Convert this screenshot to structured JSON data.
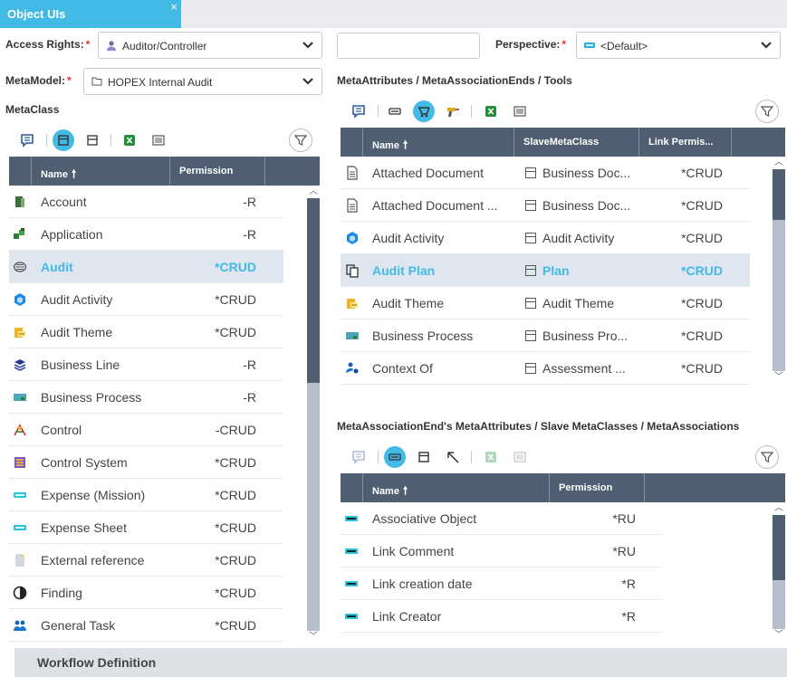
{
  "tab": {
    "title": "Object UIs",
    "close": "×"
  },
  "access_rights": {
    "label": "Access Rights:",
    "required": "*",
    "value": "Auditor/Controller",
    "icon": "user-icon"
  },
  "metamodel": {
    "label": "MetaModel:",
    "required": "*",
    "value": "HOPEX Internal Audit",
    "icon": "folder-icon"
  },
  "perspective": {
    "label": "Perspective:",
    "required": "*",
    "value": "<Default>",
    "icon": "perspective-icon"
  },
  "search_input": {
    "value": ""
  },
  "metaclass": {
    "title": "MetaClass",
    "columns": [
      "Name",
      "Permission"
    ],
    "rows": [
      {
        "name": "Account",
        "perm": "-R",
        "icon": "account-icon"
      },
      {
        "name": "Application",
        "perm": "-R",
        "icon": "application-icon"
      },
      {
        "name": "Audit",
        "perm": "*CRUD",
        "icon": "audit-icon",
        "selected": true
      },
      {
        "name": "Audit Activity",
        "perm": "*CRUD",
        "icon": "audit-activity-icon"
      },
      {
        "name": "Audit Theme",
        "perm": "*CRUD",
        "icon": "audit-theme-icon"
      },
      {
        "name": "Business Line",
        "perm": "-R",
        "icon": "business-line-icon"
      },
      {
        "name": "Business Process",
        "perm": "-R",
        "icon": "business-process-icon"
      },
      {
        "name": "Control",
        "perm": "-CRUD",
        "icon": "control-icon"
      },
      {
        "name": "Control System",
        "perm": "*CRUD",
        "icon": "control-system-icon"
      },
      {
        "name": "Expense (Mission)",
        "perm": "*CRUD",
        "icon": "expense-icon"
      },
      {
        "name": "Expense Sheet",
        "perm": "*CRUD",
        "icon": "expense-sheet-icon"
      },
      {
        "name": "External reference",
        "perm": "*CRUD",
        "icon": "external-reference-icon"
      },
      {
        "name": "Finding",
        "perm": "*CRUD",
        "icon": "finding-icon"
      },
      {
        "name": "General Task",
        "perm": "*CRUD",
        "icon": "general-task-icon"
      }
    ]
  },
  "metaattributes": {
    "title": "MetaAttributes / MetaAssociationEnds / Tools",
    "columns": [
      "Name",
      "SlaveMetaClass",
      "Link Permis..."
    ],
    "rows": [
      {
        "name": "Attached Document",
        "slave": "Business Doc...",
        "perm": "*CRUD",
        "icon": "document-icon"
      },
      {
        "name": "Attached Document ...",
        "slave": "Business Doc...",
        "perm": "*CRUD",
        "icon": "document-icon"
      },
      {
        "name": "Audit Activity",
        "slave": "Audit Activity",
        "perm": "*CRUD",
        "icon": "audit-activity-icon"
      },
      {
        "name": "Audit Plan",
        "slave": "Plan",
        "perm": "*CRUD",
        "icon": "audit-plan-icon",
        "selected": true
      },
      {
        "name": "Audit Theme",
        "slave": "Audit Theme",
        "perm": "*CRUD",
        "icon": "audit-theme-icon"
      },
      {
        "name": "Business Process",
        "slave": "Business Pro...",
        "perm": "*CRUD",
        "icon": "business-process-icon"
      },
      {
        "name": "Context Of",
        "slave": "Assessment ...",
        "perm": "*CRUD",
        "icon": "context-icon"
      }
    ]
  },
  "assoc": {
    "title": "MetaAssociationEnd's MetaAttributes / Slave MetaClasses / MetaAssociations",
    "columns": [
      "Name",
      "Permission"
    ],
    "rows": [
      {
        "name": "Associative Object",
        "perm": "*RU",
        "icon": "attribute-icon"
      },
      {
        "name": "Link Comment",
        "perm": "*RU",
        "icon": "attribute-icon"
      },
      {
        "name": "Link creation date",
        "perm": "*R",
        "icon": "attribute-icon"
      },
      {
        "name": "Link Creator",
        "perm": "*R",
        "icon": "attribute-icon"
      }
    ]
  },
  "footer": {
    "title": "Workflow Definition"
  },
  "colors": {
    "accent": "#43b9e6",
    "header": "#4f5e70",
    "selected_row": "#dfe6f0",
    "required": "#e03030"
  }
}
